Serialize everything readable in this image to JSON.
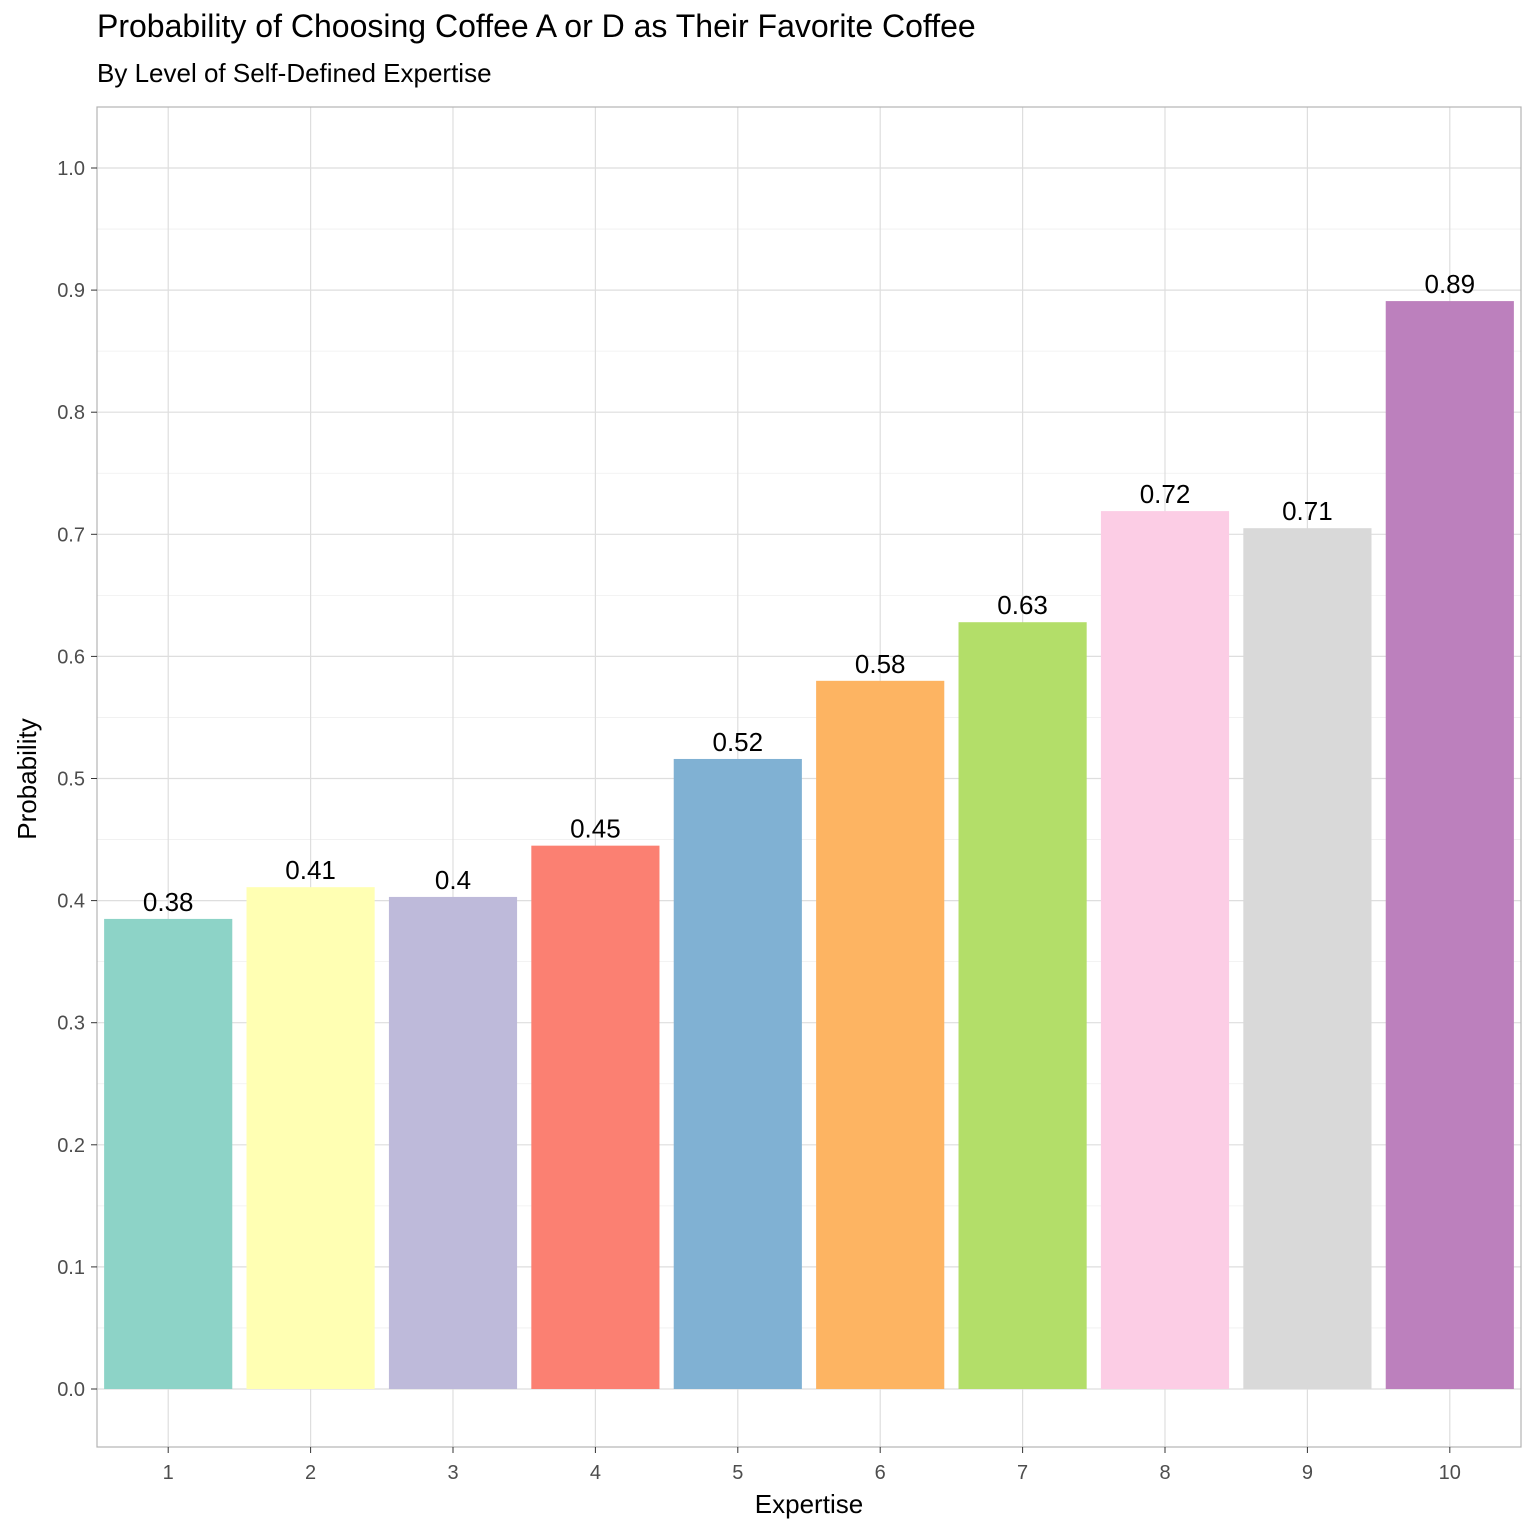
{
  "chart_data": {
    "type": "bar",
    "title": "Probability of Choosing Coffee A or D as Their Favorite Coffee",
    "subtitle": "By Level of Self-Defined Expertise",
    "xlabel": "Expertise",
    "ylabel": "Probability",
    "categories": [
      "1",
      "2",
      "3",
      "4",
      "5",
      "6",
      "7",
      "8",
      "9",
      "10"
    ],
    "values": [
      0.385,
      0.411,
      0.403,
      0.445,
      0.516,
      0.58,
      0.628,
      0.719,
      0.705,
      0.891
    ],
    "value_labels": [
      "0.38",
      "0.41",
      "0.4",
      "0.45",
      "0.52",
      "0.58",
      "0.63",
      "0.72",
      "0.71",
      "0.89"
    ],
    "colors": [
      "#8dd3c7",
      "#ffffb3",
      "#bebada",
      "#fb8072",
      "#80b1d3",
      "#fdb462",
      "#b3de69",
      "#fccde5",
      "#d9d9d9",
      "#bc80bd"
    ],
    "yticks": [
      "0.0",
      "0.1",
      "0.2",
      "0.3",
      "0.4",
      "0.5",
      "0.6",
      "0.7",
      "0.8",
      "0.9",
      "1.0"
    ],
    "ylim": [
      -0.049,
      1.049
    ],
    "grid": true,
    "legend": "none"
  }
}
